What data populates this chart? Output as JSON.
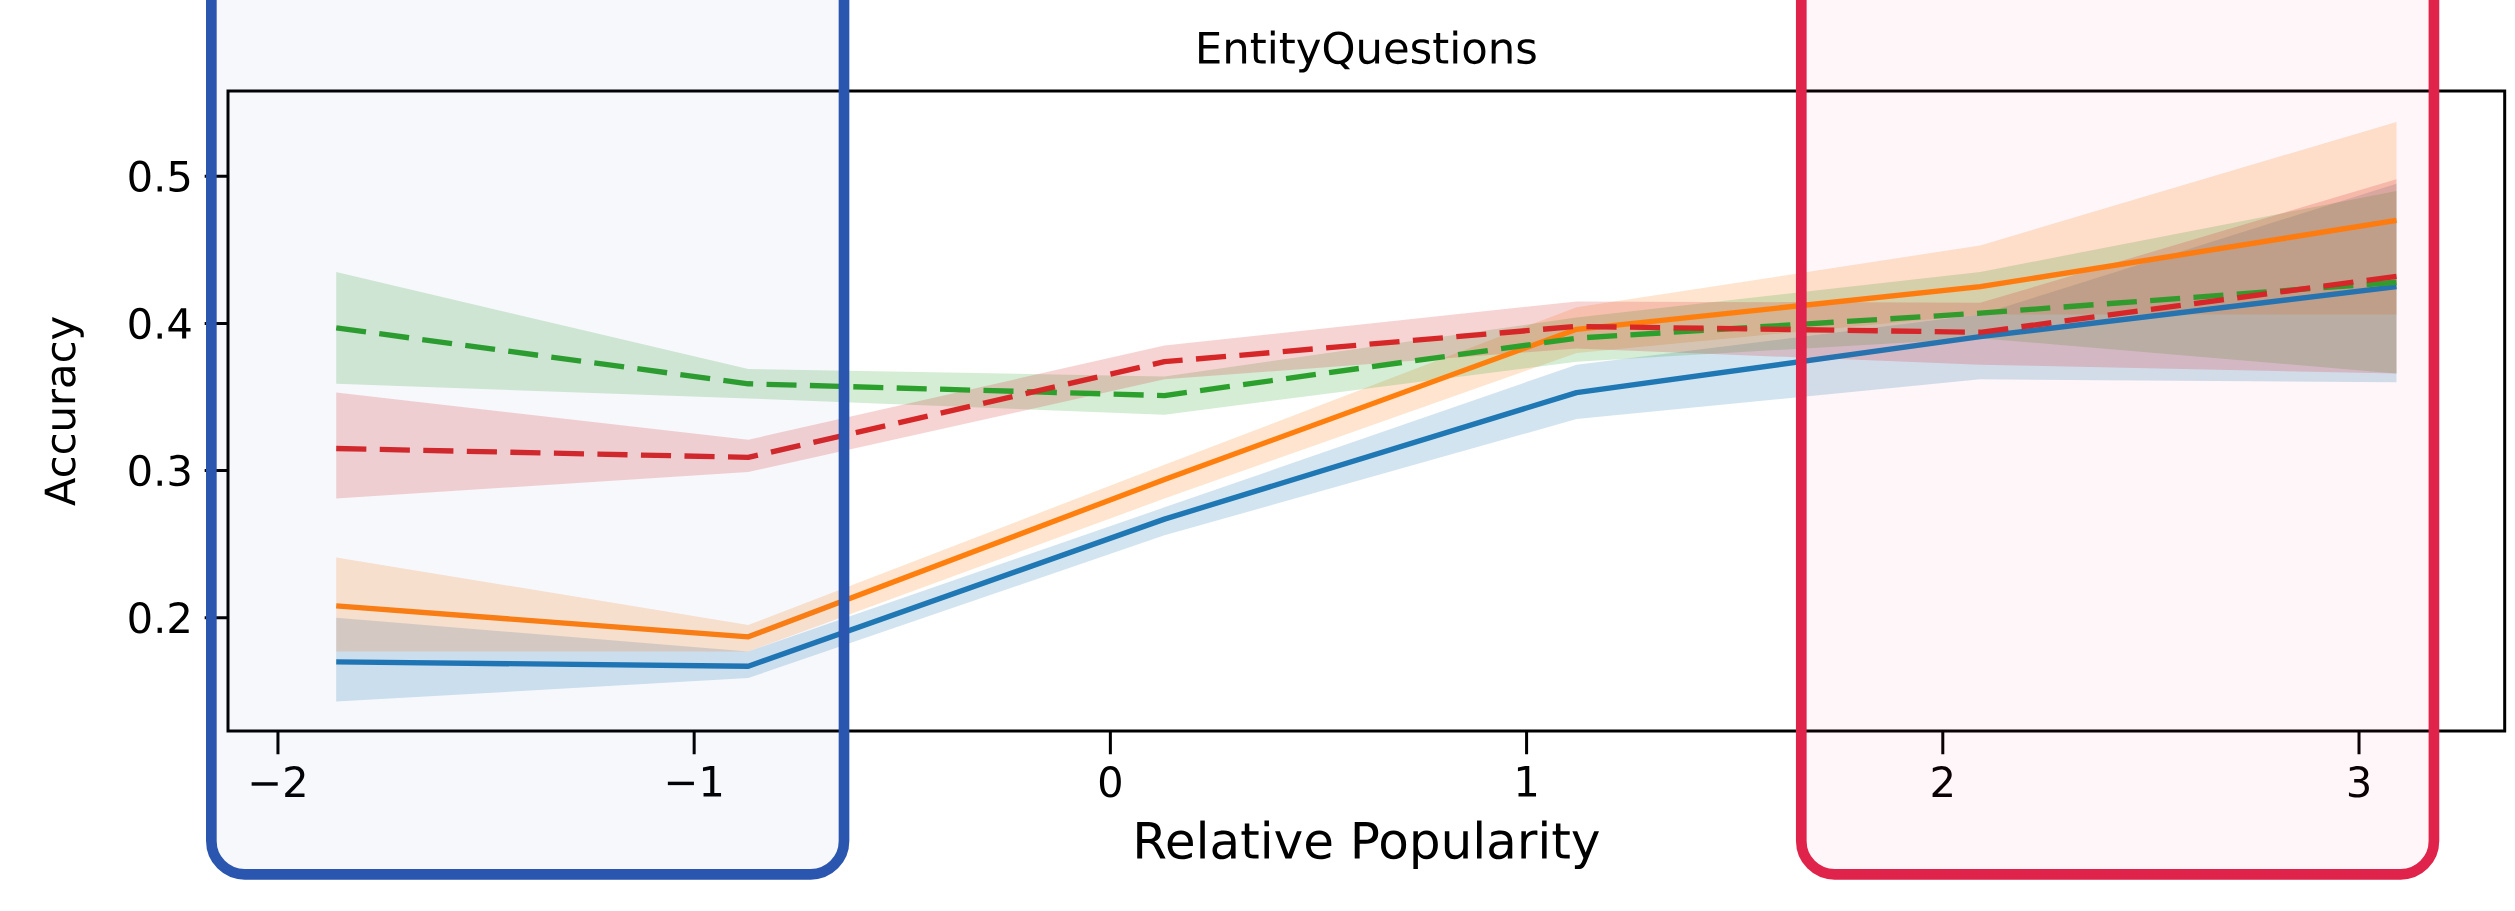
{
  "chart_data": {
    "type": "line",
    "title": "EntityQuestions",
    "xlabel": "Relative Popularity",
    "ylabel": "Accuracy",
    "x": [
      -1.86,
      -0.87,
      0.13,
      1.12,
      2.09,
      3.09
    ],
    "series": [
      {
        "color": "#1f77b4",
        "line_style": "solid",
        "values": [
          0.17,
          0.167,
          0.267,
          0.353,
          0.391,
          0.425
        ],
        "lower": [
          0.143,
          0.159,
          0.256,
          0.335,
          0.362,
          0.36
        ],
        "upper": [
          0.2,
          0.177,
          0.275,
          0.372,
          0.406,
          0.495
        ]
      },
      {
        "color": "#ff7f0e",
        "line_style": "solid",
        "values": [
          0.208,
          0.187,
          0.294,
          0.396,
          0.425,
          0.47
        ],
        "lower": [
          0.177,
          0.177,
          0.281,
          0.38,
          0.406,
          0.406
        ],
        "upper": [
          0.241,
          0.195,
          0.304,
          0.411,
          0.453,
          0.537
        ]
      },
      {
        "color": "#2ca02c",
        "line_style": "dashed",
        "values": [
          0.397,
          0.359,
          0.351,
          0.39,
          0.407,
          0.428
        ],
        "lower": [
          0.359,
          0.349,
          0.338,
          0.374,
          0.39,
          0.366
        ],
        "upper": [
          0.435,
          0.369,
          0.364,
          0.404,
          0.435,
          0.49
        ]
      },
      {
        "color": "#d62728",
        "line_style": "dashed",
        "values": [
          0.315,
          0.309,
          0.374,
          0.398,
          0.394,
          0.432
        ],
        "lower": [
          0.281,
          0.299,
          0.362,
          0.383,
          0.372,
          0.366
        ],
        "upper": [
          0.353,
          0.321,
          0.385,
          0.415,
          0.414,
          0.498
        ]
      }
    ],
    "xlim": [
      -2.12,
      3.35
    ],
    "ylim": [
      0.123,
      0.558
    ],
    "xticks": [
      {
        "value": -2,
        "label": "−2"
      },
      {
        "value": -1,
        "label": "−1"
      },
      0,
      1,
      2,
      3
    ],
    "yticks": [
      0.2,
      0.3,
      0.4,
      0.5
    ],
    "bands": [
      {
        "axis": "x",
        "from": -2.16,
        "to": -0.64,
        "color": "#2a56b0"
      },
      {
        "axis": "x",
        "from": 1.66,
        "to": 3.18,
        "color": "#e0234a"
      }
    ],
    "grid": false
  }
}
